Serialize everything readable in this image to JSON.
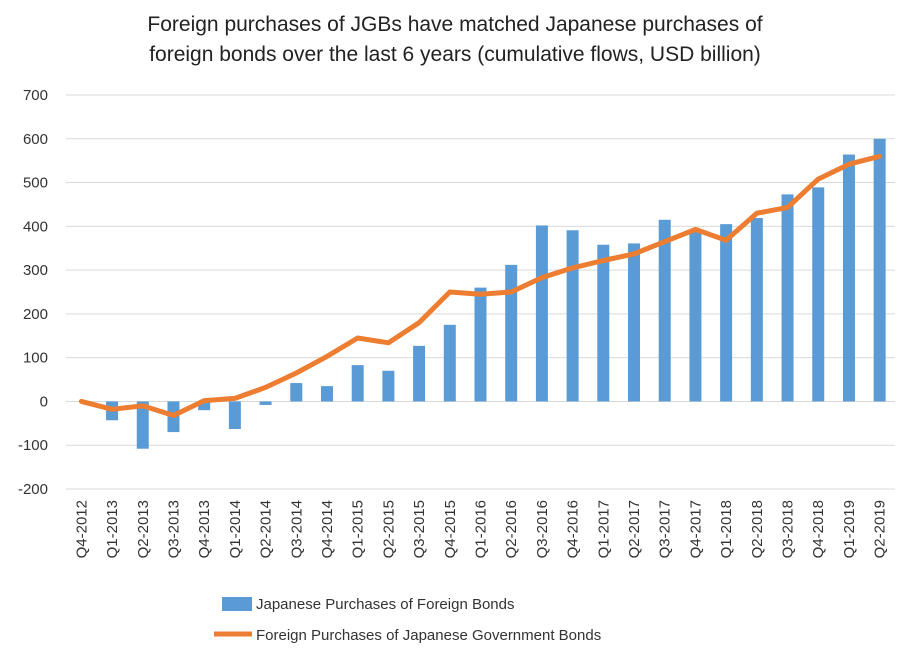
{
  "chart_data": {
    "type": "bar",
    "title_lines": [
      "Foreign purchases of JGBs have matched Japanese purchases of",
      "foreign bonds over the last 6 years (cumulative flows, USD billion)"
    ],
    "categories": [
      "Q4-2012",
      "Q1-2013",
      "Q2-2013",
      "Q3-2013",
      "Q4-2013",
      "Q1-2014",
      "Q2-2014",
      "Q3-2014",
      "Q4-2014",
      "Q1-2015",
      "Q2-2015",
      "Q3-2015",
      "Q4-2015",
      "Q1-2016",
      "Q2-2016",
      "Q3-2016",
      "Q4-2016",
      "Q1-2017",
      "Q2-2017",
      "Q3-2017",
      "Q4-2017",
      "Q1-2018",
      "Q2-2018",
      "Q3-2018",
      "Q4-2018",
      "Q1-2019",
      "Q2-2019"
    ],
    "series": [
      {
        "name": "Japanese Purchases of Foreign Bonds",
        "kind": "bar",
        "color": "#5b9bd5",
        "values": [
          0,
          -43,
          -108,
          -70,
          -20,
          -63,
          -8,
          42,
          35,
          83,
          70,
          127,
          175,
          260,
          312,
          402,
          391,
          358,
          361,
          415,
          392,
          405,
          419,
          473,
          489,
          564,
          600
        ]
      },
      {
        "name": "Foreign Purchases of Japanese Government Bonds",
        "kind": "line",
        "color": "#ed7d31",
        "values": [
          0,
          -18,
          -10,
          -32,
          2,
          7,
          32,
          65,
          103,
          145,
          134,
          180,
          250,
          245,
          250,
          283,
          305,
          322,
          337,
          365,
          393,
          368,
          430,
          443,
          508,
          542,
          560
        ]
      }
    ],
    "ylim": [
      -200,
      700
    ],
    "yticks": [
      -200,
      -100,
      0,
      100,
      200,
      300,
      400,
      500,
      600,
      700
    ],
    "xlabel": "",
    "ylabel": "",
    "grid": true,
    "legend_position": "bottom"
  }
}
